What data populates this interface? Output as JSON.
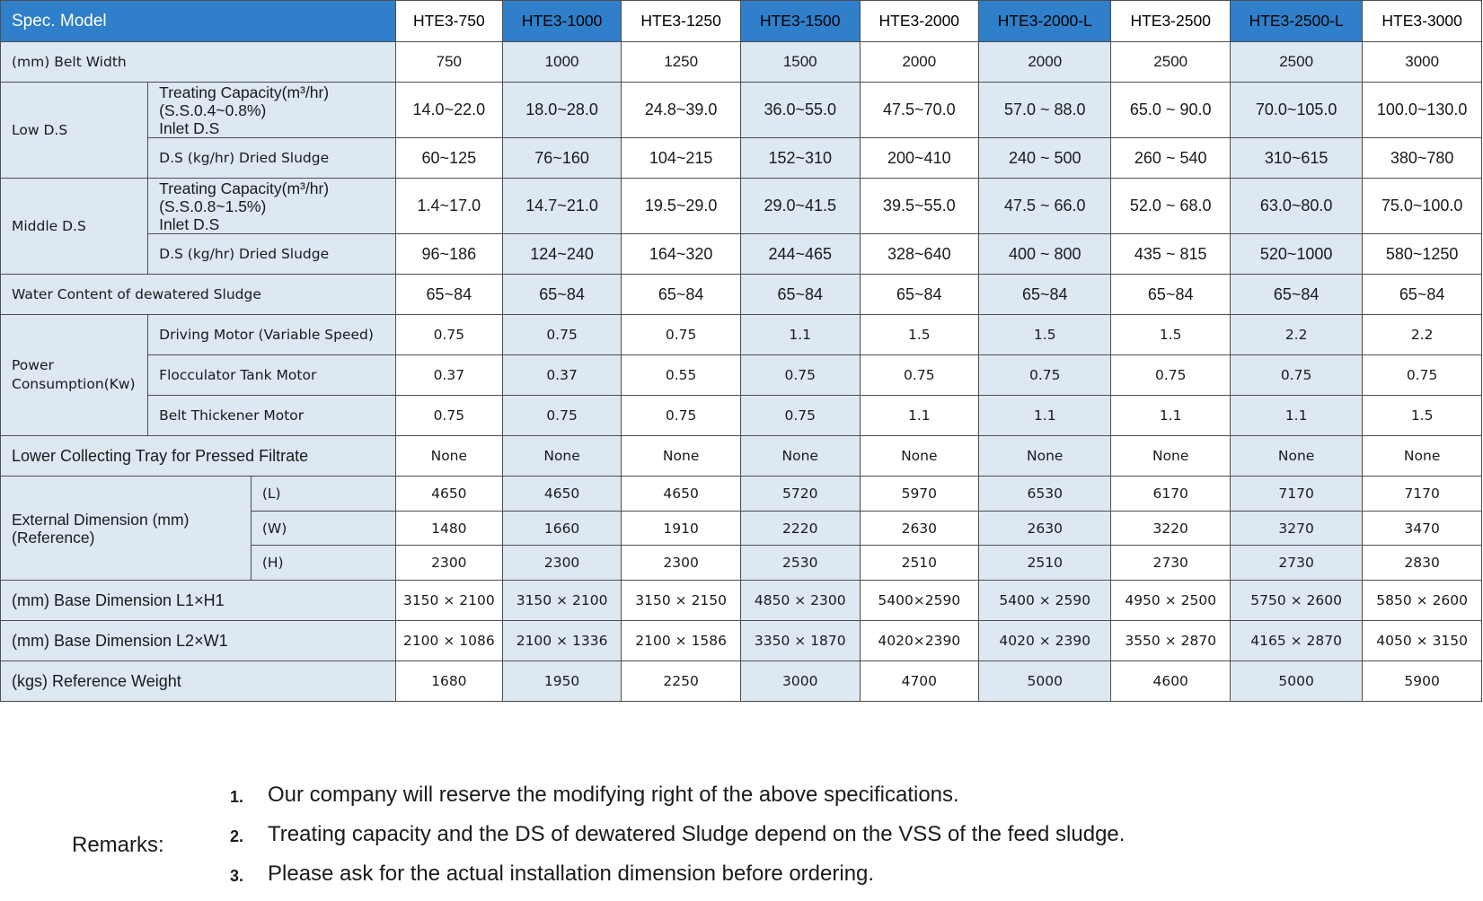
{
  "header": {
    "label": "Spec. Model",
    "models": [
      "HTE3-750",
      "HTE3-1000",
      "HTE3-1250",
      "HTE3-1500",
      "HTE3-2000",
      "HTE3-2000-L",
      "HTE3-2500",
      "HTE3-2500-L",
      "HTE3-3000"
    ]
  },
  "belt_width": {
    "label": "(mm) Belt Width",
    "values": [
      "750",
      "1000",
      "1250",
      "1500",
      "2000",
      "2000",
      "2500",
      "2500",
      "3000"
    ]
  },
  "low_ds": {
    "label": "Low D.S",
    "treating_label": [
      "Treating Capacity(m³/hr)",
      "(S.S.0.4~0.8%)",
      "Inlet D.S"
    ],
    "treating": [
      "14.0~22.0",
      "18.0~28.0",
      "24.8~39.0",
      "36.0~55.0",
      "47.5~70.0",
      "57.0 ~ 88.0",
      "65.0 ~ 90.0",
      "70.0~105.0",
      "100.0~130.0"
    ],
    "ds_label": "D.S (kg/hr) Dried Sludge",
    "ds": [
      "60~125",
      "76~160",
      "104~215",
      "152~310",
      "200~410",
      "240 ~ 500",
      "260 ~ 540",
      "310~615",
      "380~780"
    ]
  },
  "middle_ds": {
    "label": "Middle D.S",
    "treating_label": [
      "Treating Capacity(m³/hr)",
      "(S.S.0.8~1.5%)",
      "Inlet D.S"
    ],
    "treating": [
      "1.4~17.0",
      "14.7~21.0",
      "19.5~29.0",
      "29.0~41.5",
      "39.5~55.0",
      "47.5 ~ 66.0",
      "52.0 ~ 68.0",
      "63.0~80.0",
      "75.0~100.0"
    ],
    "ds_label": "D.S (kg/hr) Dried Sludge",
    "ds": [
      "96~186",
      "124~240",
      "164~320",
      "244~465",
      "328~640",
      "400 ~ 800",
      "435 ~ 815",
      "520~1000",
      "580~1250"
    ]
  },
  "water_content": {
    "label": "Water Content of dewatered Sludge",
    "values": [
      "65~84",
      "65~84",
      "65~84",
      "65~84",
      "65~84",
      "65~84",
      "65~84",
      "65~84",
      "65~84"
    ]
  },
  "power": {
    "label": "Power Consumption(Kw)",
    "driving_label": "Driving Motor (Variable Speed)",
    "driving": [
      "0.75",
      "0.75",
      "0.75",
      "1.1",
      "1.5",
      "1.5",
      "1.5",
      "2.2",
      "2.2"
    ],
    "flocculator_label": "Flocculator Tank Motor",
    "flocculator": [
      "0.37",
      "0.37",
      "0.55",
      "0.75",
      "0.75",
      "0.75",
      "0.75",
      "0.75",
      "0.75"
    ],
    "thickener_label": "Belt Thickener Motor",
    "thickener": [
      "0.75",
      "0.75",
      "0.75",
      "0.75",
      "1.1",
      "1.1",
      "1.1",
      "1.1",
      "1.5"
    ]
  },
  "tray": {
    "label": "Lower Collecting Tray for Pressed Filtrate",
    "values": [
      "None",
      "None",
      "None",
      "None",
      "None",
      "None",
      "None",
      "None",
      "None"
    ]
  },
  "external": {
    "label": "External Dimension (mm) (Reference)",
    "l_label": "(L)",
    "l": [
      "4650",
      "4650",
      "4650",
      "5720",
      "5970",
      "6530",
      "6170",
      "7170",
      "7170"
    ],
    "w_label": "(W)",
    "w": [
      "1480",
      "1660",
      "1910",
      "2220",
      "2630",
      "2630",
      "3220",
      "3270",
      "3470"
    ],
    "h_label": "(H)",
    "h": [
      "2300",
      "2300",
      "2300",
      "2530",
      "2510",
      "2510",
      "2730",
      "2730",
      "2830"
    ]
  },
  "base1": {
    "label": "(mm) Base Dimension L1×H1",
    "values": [
      "3150 × 2100",
      "3150 × 2100",
      "3150 × 2150",
      "4850 × 2300",
      "5400×2590",
      "5400 × 2590",
      "4950 × 2500",
      "5750 × 2600",
      "5850 × 2600"
    ]
  },
  "base2": {
    "label": "(mm) Base Dimension L2×W1",
    "values": [
      "2100 × 1086",
      "2100 × 1336",
      "2100 × 1586",
      "3350 × 1870",
      "4020×2390",
      "4020 × 2390",
      "3550 × 2870",
      "4165 × 2870",
      "4050 × 3150"
    ]
  },
  "weight": {
    "label": "(kgs) Reference Weight",
    "values": [
      "1680",
      "1950",
      "2250",
      "3000",
      "4700",
      "5000",
      "4600",
      "5000",
      "5900"
    ]
  },
  "remarks": {
    "label": "Remarks:",
    "items": [
      {
        "num": "1.",
        "text": "Our company will reserve the modifying right of the above specifications."
      },
      {
        "num": "2.",
        "text": "Treating capacity and the DS of dewatered Sludge depend on the VSS of the feed sludge."
      },
      {
        "num": "3.",
        "text": "Please ask for the actual installation dimension before ordering."
      }
    ]
  }
}
